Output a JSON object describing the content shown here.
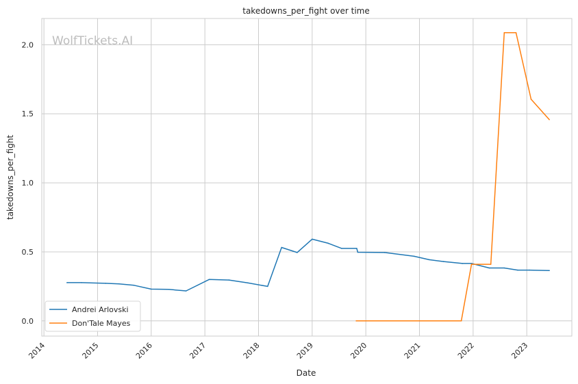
{
  "chart_data": {
    "type": "line",
    "title": "takedowns_per_fight over time",
    "xlabel": "Date",
    "ylabel": "takedowns_per_fight",
    "watermark": "WolfTickets.AI",
    "xlim": [
      2013.96,
      2023.84
    ],
    "ylim": [
      -0.11,
      2.19
    ],
    "x_ticks": [
      {
        "label": "2014",
        "value": 2014.0
      },
      {
        "label": "2015",
        "value": 2015.0
      },
      {
        "label": "2016",
        "value": 2016.0
      },
      {
        "label": "2017",
        "value": 2017.0
      },
      {
        "label": "2018",
        "value": 2018.0
      },
      {
        "label": "2019",
        "value": 2019.0
      },
      {
        "label": "2020",
        "value": 2020.0
      },
      {
        "label": "2021",
        "value": 2021.0
      },
      {
        "label": "2022",
        "value": 2022.0
      },
      {
        "label": "2023",
        "value": 2023.0
      }
    ],
    "y_ticks": [
      {
        "label": "0.0",
        "value": 0.0
      },
      {
        "label": "0.5",
        "value": 0.5
      },
      {
        "label": "1.0",
        "value": 1.0
      },
      {
        "label": "1.5",
        "value": 1.5
      },
      {
        "label": "2.0",
        "value": 2.0
      }
    ],
    "grid": true,
    "legend_position": "lower-left",
    "series": [
      {
        "name": "Andrei Arlovski",
        "color": "#1f77b4",
        "points": [
          [
            2014.43,
            0.277
          ],
          [
            2014.7,
            0.277
          ],
          [
            2015.15,
            0.272
          ],
          [
            2015.4,
            0.268
          ],
          [
            2015.68,
            0.258
          ],
          [
            2016.0,
            0.23
          ],
          [
            2016.33,
            0.228
          ],
          [
            2016.65,
            0.217
          ],
          [
            2017.08,
            0.3
          ],
          [
            2017.45,
            0.296
          ],
          [
            2017.8,
            0.275
          ],
          [
            2018.17,
            0.25
          ],
          [
            2018.43,
            0.532
          ],
          [
            2018.72,
            0.495
          ],
          [
            2019.0,
            0.592
          ],
          [
            2019.3,
            0.562
          ],
          [
            2019.55,
            0.525
          ],
          [
            2019.83,
            0.525
          ],
          [
            2019.85,
            0.497
          ],
          [
            2020.35,
            0.495
          ],
          [
            2020.9,
            0.468
          ],
          [
            2021.18,
            0.443
          ],
          [
            2021.45,
            0.43
          ],
          [
            2021.8,
            0.416
          ],
          [
            2021.97,
            0.416
          ],
          [
            2022.3,
            0.383
          ],
          [
            2022.58,
            0.383
          ],
          [
            2022.83,
            0.368
          ],
          [
            2023.05,
            0.368
          ],
          [
            2023.42,
            0.365
          ]
        ]
      },
      {
        "name": "Don'Tale Mayes",
        "color": "#ff7f0e",
        "points": [
          [
            2019.82,
            0.0
          ],
          [
            2021.78,
            0.0
          ],
          [
            2021.97,
            0.41
          ],
          [
            2022.33,
            0.41
          ],
          [
            2022.58,
            2.087
          ],
          [
            2022.8,
            2.087
          ],
          [
            2023.08,
            1.605
          ],
          [
            2023.42,
            1.458
          ]
        ]
      }
    ]
  }
}
